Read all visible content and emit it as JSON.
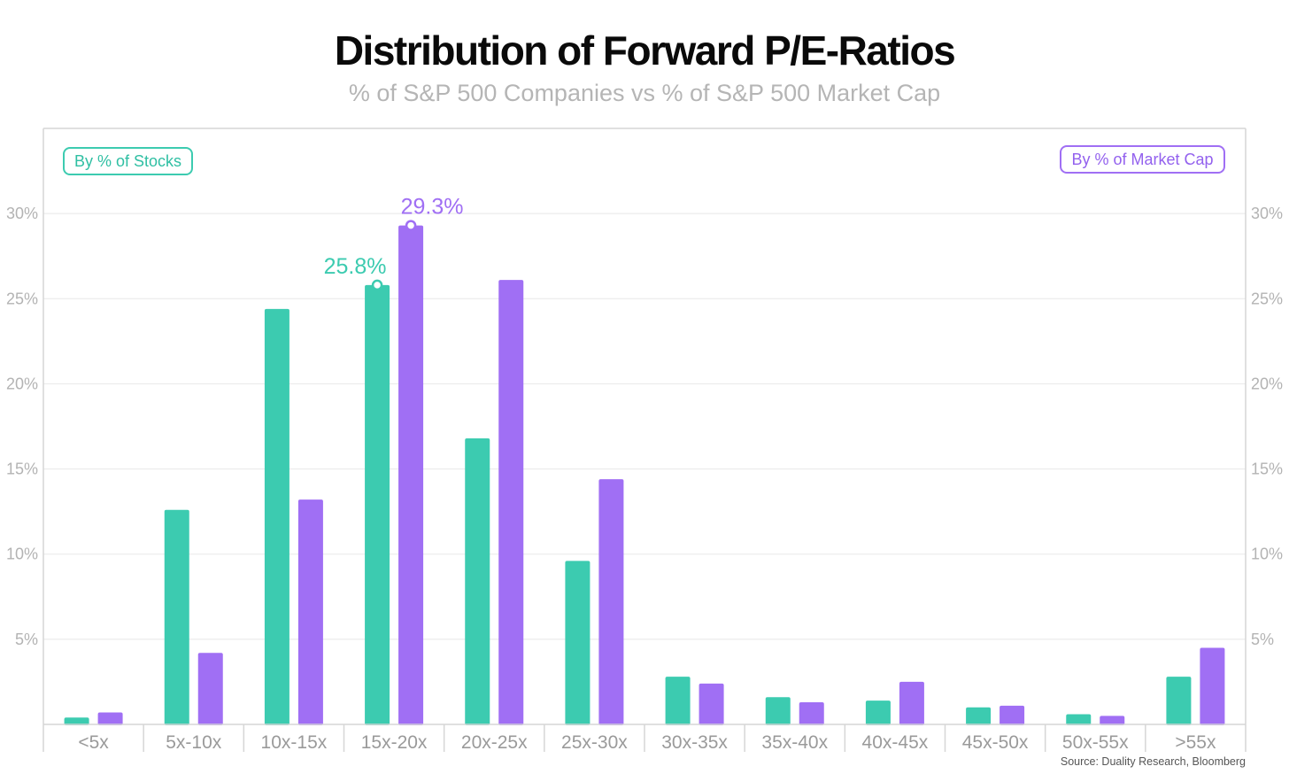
{
  "title": "Distribution of Forward P/E-Ratios",
  "subtitle": "% of S&P 500 Companies vs % of S&P 500 Market Cap",
  "source": "Source: Duality Research, Bloomberg",
  "colors": {
    "stocks": "#3ccbb0",
    "market_cap": "#a06ff4",
    "grid": "#e8e8e8",
    "frame": "#d6d6d6"
  },
  "legend": {
    "stocks": "By % of Stocks",
    "market_cap": "By % of Market Cap"
  },
  "chart_data": {
    "type": "bar",
    "title": "Distribution of Forward P/E-Ratios",
    "subtitle": "% of S&P 500 Companies vs % of S&P 500 Market Cap",
    "categories": [
      "<5x",
      "5x-10x",
      "10x-15x",
      "15x-20x",
      "20x-25x",
      "25x-30x",
      "30x-35x",
      "35x-40x",
      "40x-45x",
      "45x-50x",
      "50x-55x",
      ">55x"
    ],
    "series": [
      {
        "name": "By % of Stocks",
        "values": [
          0.4,
          12.6,
          24.4,
          25.8,
          16.8,
          9.6,
          2.8,
          1.6,
          1.4,
          1.0,
          0.6,
          2.8
        ]
      },
      {
        "name": "By % of Market Cap",
        "values": [
          0.7,
          4.2,
          13.2,
          29.3,
          26.1,
          14.4,
          2.4,
          1.3,
          2.5,
          1.1,
          0.5,
          4.5
        ]
      }
    ],
    "ylim": [
      0,
      35
    ],
    "yticks": [
      5,
      10,
      15,
      20,
      25,
      30
    ],
    "ytick_labels": [
      "5%",
      "10%",
      "15%",
      "20%",
      "25%",
      "30%"
    ],
    "annotations": [
      {
        "series": 0,
        "category": "15x-20x",
        "text": "25.8%"
      },
      {
        "series": 1,
        "category": "15x-20x",
        "text": "29.3%"
      }
    ],
    "legend_position": "top-left and top-right",
    "grid": true
  }
}
